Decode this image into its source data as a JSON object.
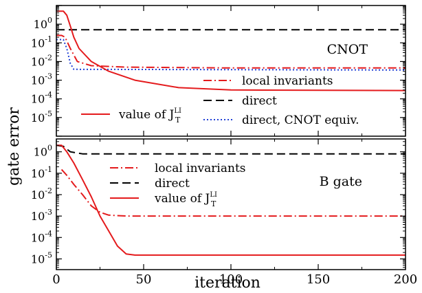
{
  "ylabel_shared": "gate error",
  "xlabel_shared": "iteration",
  "chart_data": [
    {
      "type": "line",
      "panel_label": "CNOT",
      "xlim": [
        0,
        200
      ],
      "ylim_exp": [
        -6,
        1
      ],
      "yscale": "log",
      "grid": false,
      "x_ticks": [
        0,
        50,
        100,
        150,
        200
      ],
      "y_ticks": [
        {
          "mant": "10",
          "exp": "0",
          "value": 1
        },
        {
          "mant": "10",
          "exp": "-1",
          "value": 0.1
        },
        {
          "mant": "10",
          "exp": "-2",
          "value": 0.01
        },
        {
          "mant": "10",
          "exp": "-3",
          "value": 0.001
        },
        {
          "mant": "10",
          "exp": "-4",
          "value": 0.0001
        },
        {
          "mant": "10",
          "exp": "-5",
          "value": 1e-05
        }
      ],
      "series": [
        {
          "name": "local invariants",
          "color": "#e41a1c",
          "dash": "dashdot",
          "points": [
            [
              0,
              0.25
            ],
            [
              3,
              0.25
            ],
            [
              5,
              0.2
            ],
            [
              8,
              0.05
            ],
            [
              12,
              0.01
            ],
            [
              20,
              0.006
            ],
            [
              40,
              0.005
            ],
            [
              100,
              0.0045
            ],
            [
              200,
              0.0045
            ]
          ]
        },
        {
          "name": "direct",
          "color": "#000000",
          "dash": "dash",
          "points": [
            [
              0,
              0.5
            ],
            [
              200,
              0.5
            ]
          ]
        },
        {
          "name": "direct, CNOT equiv.",
          "color": "#1f3fd6",
          "dash": "dot",
          "points": [
            [
              0,
              0.15
            ],
            [
              4,
              0.15
            ],
            [
              6,
              0.05
            ],
            [
              8,
              0.008
            ],
            [
              10,
              0.0038
            ],
            [
              200,
              0.0035
            ]
          ]
        },
        {
          "name": "value of J",
          "name_sub": "T",
          "name_sup": "LI",
          "color": "#e41a1c",
          "dash": "solid",
          "points": [
            [
              0,
              5
            ],
            [
              4,
              5
            ],
            [
              6,
              3
            ],
            [
              8,
              0.8
            ],
            [
              10,
              0.2
            ],
            [
              13,
              0.05
            ],
            [
              20,
              0.01
            ],
            [
              30,
              0.003
            ],
            [
              45,
              0.001
            ],
            [
              70,
              0.0004
            ],
            [
              100,
              0.0003
            ],
            [
              200,
              0.00028
            ]
          ]
        }
      ],
      "legend": [
        {
          "name": "local invariants",
          "sub": "",
          "sup": ""
        },
        {
          "name": "direct",
          "sub": "",
          "sup": ""
        },
        {
          "name": "value of J",
          "sub": "T",
          "sup": "LI"
        },
        {
          "name": "direct, CNOT equiv.",
          "sub": "",
          "sup": ""
        }
      ]
    },
    {
      "type": "line",
      "panel_label": "B gate",
      "xlim": [
        0,
        200
      ],
      "ylim_exp": [
        -5.5,
        0.6
      ],
      "yscale": "log",
      "grid": false,
      "x_ticks": [
        0,
        50,
        100,
        150,
        200
      ],
      "y_ticks": [
        {
          "mant": "10",
          "exp": "0",
          "value": 1
        },
        {
          "mant": "10",
          "exp": "-1",
          "value": 0.1
        },
        {
          "mant": "10",
          "exp": "-2",
          "value": 0.01
        },
        {
          "mant": "10",
          "exp": "-3",
          "value": 0.001
        },
        {
          "mant": "10",
          "exp": "-4",
          "value": 0.0001
        },
        {
          "mant": "10",
          "exp": "-5",
          "value": 1e-05
        }
      ],
      "series": [
        {
          "name": "local invariants",
          "color": "#e41a1c",
          "dash": "dashdot",
          "points": [
            [
              3,
              0.15
            ],
            [
              6,
              0.08
            ],
            [
              10,
              0.03
            ],
            [
              15,
              0.01
            ],
            [
              20,
              0.003
            ],
            [
              25,
              0.0015
            ],
            [
              30,
              0.0011
            ],
            [
              40,
              0.001
            ],
            [
              200,
              0.001
            ]
          ]
        },
        {
          "name": "direct",
          "color": "#000000",
          "dash": "dash",
          "points": [
            [
              0,
              2
            ],
            [
              4,
              1.8
            ],
            [
              8,
              1.0
            ],
            [
              15,
              0.8
            ],
            [
              30,
              0.8
            ],
            [
              200,
              0.8
            ]
          ]
        },
        {
          "name": "value of J",
          "name_sub": "T",
          "name_sup": "LI",
          "color": "#e41a1c",
          "dash": "solid",
          "points": [
            [
              0,
              2
            ],
            [
              3,
              2
            ],
            [
              6,
              1
            ],
            [
              10,
              0.3
            ],
            [
              15,
              0.05
            ],
            [
              20,
              0.008
            ],
            [
              25,
              0.001
            ],
            [
              30,
              0.0002
            ],
            [
              35,
              4e-05
            ],
            [
              40,
              1.7e-05
            ],
            [
              45,
              1.5e-05
            ],
            [
              200,
              1.5e-05
            ]
          ]
        }
      ],
      "legend": [
        {
          "name": "local invariants",
          "sub": "",
          "sup": ""
        },
        {
          "name": "direct",
          "sub": "",
          "sup": ""
        },
        {
          "name": "value of J",
          "sub": "T",
          "sup": "LI"
        }
      ]
    }
  ]
}
